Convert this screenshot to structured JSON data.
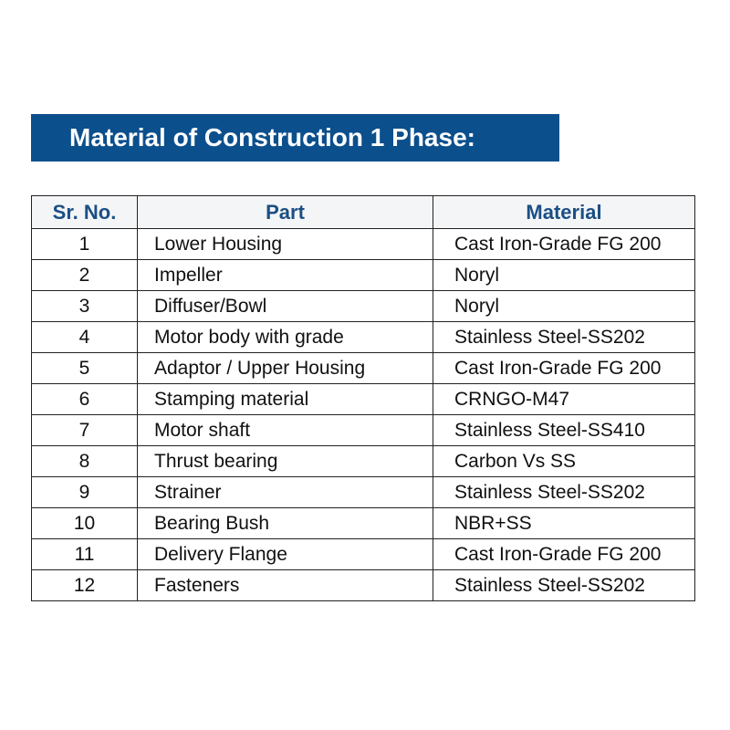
{
  "title": "Material of Construction 1 Phase:",
  "colors": {
    "banner": "#0b4f8d",
    "header_text": "#1b4f84"
  },
  "table": {
    "headers": [
      "Sr. No.",
      "Part",
      "Material"
    ],
    "rows": [
      [
        "1",
        "Lower Housing",
        "Cast Iron-Grade FG 200"
      ],
      [
        "2",
        "Impeller",
        "Noryl"
      ],
      [
        "3",
        "Diffuser/Bowl",
        "Noryl"
      ],
      [
        "4",
        "Motor body with grade",
        "Stainless Steel-SS202"
      ],
      [
        "5",
        "Adaptor / Upper Housing",
        "Cast Iron-Grade FG 200"
      ],
      [
        "6",
        "Stamping material",
        "CRNGO-M47"
      ],
      [
        "7",
        "Motor shaft",
        "Stainless Steel-SS410"
      ],
      [
        "8",
        "Thrust bearing",
        "Carbon Vs SS"
      ],
      [
        "9",
        "Strainer",
        "Stainless Steel-SS202"
      ],
      [
        "10",
        "Bearing Bush",
        "NBR+SS"
      ],
      [
        "11",
        "Delivery Flange",
        "Cast Iron-Grade FG 200"
      ],
      [
        "12",
        "Fasteners",
        "Stainless Steel-SS202"
      ]
    ]
  }
}
